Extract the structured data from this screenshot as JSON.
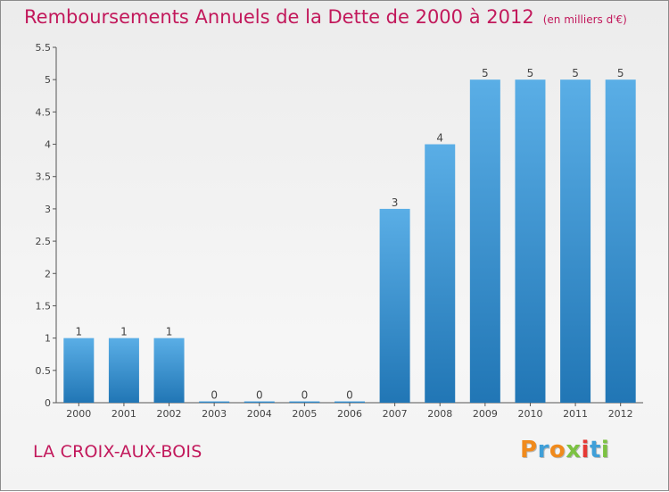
{
  "title": "Remboursements Annuels de la Dette de 2000 à 2012",
  "unit_label": "(en milliers d'€)",
  "location": "LA CROIX-AUX-BOIS",
  "logo": {
    "text": "Proxiti",
    "letter_colors": [
      "#f08a1c",
      "#3f9fd8",
      "#f08a1c",
      "#7cc242",
      "#e53935",
      "#3f9fd8",
      "#7cc242"
    ]
  },
  "chart_data": {
    "type": "bar",
    "title": "Remboursements Annuels de la Dette de 2000 à 2012",
    "categories": [
      "2000",
      "2001",
      "2002",
      "2003",
      "2004",
      "2005",
      "2006",
      "2007",
      "2008",
      "2009",
      "2010",
      "2011",
      "2012"
    ],
    "values": [
      1,
      1,
      1,
      0,
      0,
      0,
      0,
      3,
      4,
      5,
      5,
      5,
      5
    ],
    "data_labels": [
      "1",
      "1",
      "1",
      "0",
      "0",
      "0",
      "0",
      "3",
      "4",
      "5",
      "5",
      "5",
      "5"
    ],
    "ylim": [
      0,
      5.5
    ],
    "yticks": [
      0,
      0.5,
      1,
      1.5,
      2,
      2.5,
      3,
      3.5,
      4,
      4.5,
      5,
      5.5
    ],
    "ytick_labels": [
      "0",
      "0.5",
      "1",
      "1.5",
      "2",
      "2.5",
      "3",
      "3.5",
      "4",
      "4.5",
      "5",
      "5.5"
    ],
    "xlabel": "",
    "ylabel": "",
    "grid": false,
    "colors": {
      "bar_top": "#5aaee6",
      "bar_bottom": "#2176b5",
      "axis": "#555555"
    }
  }
}
